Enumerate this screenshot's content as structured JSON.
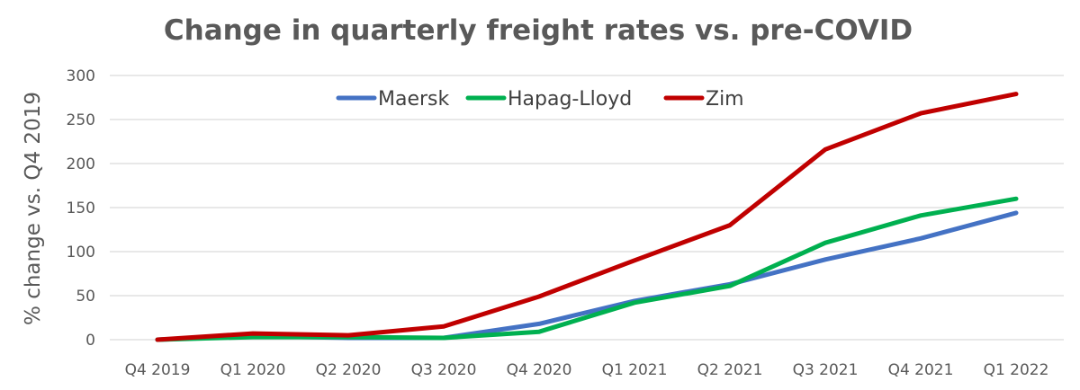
{
  "chart_data": {
    "type": "line",
    "title": "Change in quarterly freight rates vs. pre-COVID",
    "xlabel": "",
    "ylabel": "% change vs. Q4 2019",
    "categories": [
      "Q4 2019",
      "Q1 2020",
      "Q2 2020",
      "Q3 2020",
      "Q4 2020",
      "Q1 2021",
      "Q2 2021",
      "Q3 2021",
      "Q4 2021",
      "Q1 2022"
    ],
    "ylim": [
      0,
      300
    ],
    "yticks": [
      "0",
      "50",
      "100",
      "150",
      "200",
      "250",
      "300"
    ],
    "grid": true,
    "legend_position": "top-center",
    "series": [
      {
        "name": "Maersk",
        "color": "#4472c4",
        "values": [
          0,
          4,
          2,
          2,
          18,
          44,
          63,
          91,
          115,
          144
        ]
      },
      {
        "name": "Hapag-Lloyd",
        "color": "#00b050",
        "values": [
          0,
          3,
          3,
          2,
          9,
          42,
          61,
          110,
          141,
          160
        ]
      },
      {
        "name": "Zim",
        "color": "#c00000",
        "values": [
          0,
          7,
          5,
          15,
          49,
          90,
          130,
          216,
          257,
          279
        ]
      }
    ]
  }
}
